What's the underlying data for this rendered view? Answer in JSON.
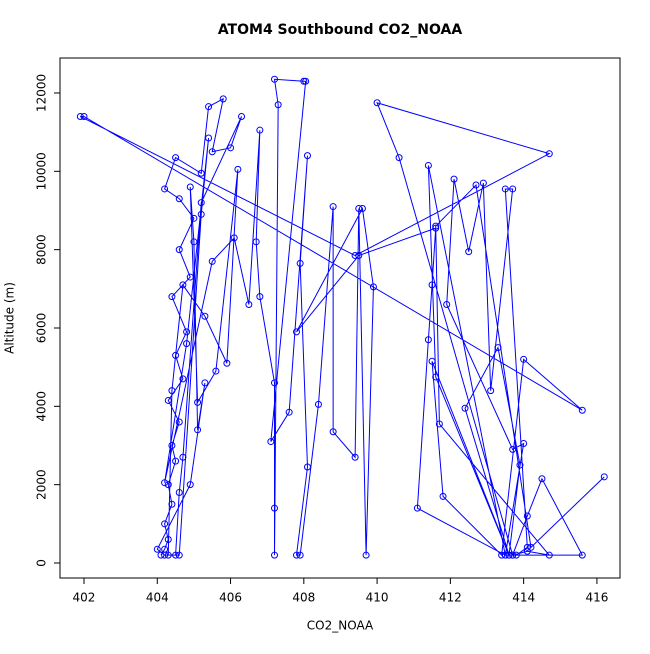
{
  "chart_data": {
    "type": "line",
    "title": "ATOM4 Southbound CO2_NOAA",
    "x_label": "CO2_NOAA",
    "y_label": "Altitude (m)",
    "color": "#0000ff",
    "x": [
      404.1,
      404.2,
      404.3,
      404.2,
      404.4,
      404.3,
      404.5,
      404.4,
      404.6,
      404.3,
      404.7,
      404.5,
      404.8,
      404.4,
      404.9,
      404.6,
      405.0,
      404.6,
      404.2,
      404.5,
      405.2,
      405.4,
      405.8,
      405.5,
      406.0,
      406.3,
      405.2,
      404.7,
      404.6,
      404.5,
      404.2,
      404.0,
      404.9,
      405.3,
      405.1,
      405.0,
      404.9,
      405.1,
      405.6,
      406.2,
      405.9,
      405.3,
      404.7,
      404.4,
      404.3,
      404.6,
      405.2,
      405.4,
      404.8,
      404.2,
      405.5,
      406.1,
      406.5,
      406.8,
      406.7,
      406.8,
      407.2,
      407.2,
      407.2,
      407.3,
      407.2,
      408.0,
      408.05,
      407.1,
      407.6,
      408.1,
      407.9,
      408.1,
      407.8,
      407.9,
      408.4,
      408.8,
      408.8,
      409.4,
      409.5,
      409.7,
      409.9,
      409.6,
      407.8,
      409.5,
      411.6,
      411.5,
      411.4,
      411.1,
      413.5,
      413.8,
      414.1,
      413.5,
      413.7,
      413.1,
      412.9,
      412.5,
      412.1,
      411.9,
      413.7,
      414.0,
      413.5,
      411.4,
      411.6,
      413.6,
      412.4,
      413.3,
      413.9,
      413.6,
      411.5,
      411.8,
      413.4,
      414.0,
      415.6,
      402.0,
      401.9,
      409.4,
      414.7,
      410.0,
      410.6,
      413.7,
      415.6,
      414.5,
      414.1,
      413.7,
      414.1,
      414.7,
      411.7,
      411.6,
      412.7,
      414.2,
      416.2
    ],
    "values": [
      200,
      350,
      600,
      1000,
      1500,
      2000,
      2600,
      3000,
      3600,
      4150,
      4700,
      5300,
      5900,
      6800,
      7300,
      8000,
      8800,
      9300,
      9550,
      10350,
      9950,
      11650,
      11850,
      10500,
      10600,
      11400,
      9200,
      2700,
      1800,
      200,
      200,
      350,
      2000,
      4600,
      3400,
      8200,
      9600,
      4100,
      4900,
      10050,
      5100,
      6300,
      7100,
      4400,
      200,
      200,
      8900,
      10850,
      5600,
      2050,
      7700,
      8300,
      6600,
      11050,
      8200,
      6800,
      4600,
      1400,
      200,
      11700,
      12350,
      12300,
      12300,
      3100,
      3850,
      10400,
      7650,
      2450,
      200,
      200,
      4050,
      9100,
      3350,
      2700,
      9050,
      200,
      7050,
      9050,
      5900,
      7850,
      8550,
      7100,
      5700,
      1400,
      200,
      200,
      400,
      9550,
      9550,
      4400,
      9700,
      7950,
      9800,
      6600,
      2900,
      3050,
      200,
      10150,
      4750,
      200,
      3950,
      5500,
      2500,
      200,
      5150,
      1700,
      200,
      5200,
      3900,
      11400,
      11400,
      7850,
      10450,
      11750,
      10350,
      200,
      200,
      2150,
      1200,
      200,
      300,
      200,
      3550,
      8600,
      9650,
      400,
      2200
    ],
    "xlim": [
      401.345,
      416.63
    ],
    "ylim": [
      -383,
      12893
    ],
    "xticks": [
      402,
      404,
      406,
      408,
      410,
      412,
      414,
      416
    ],
    "yticks": [
      0,
      2000,
      4000,
      6000,
      8000,
      10000,
      12000
    ]
  }
}
